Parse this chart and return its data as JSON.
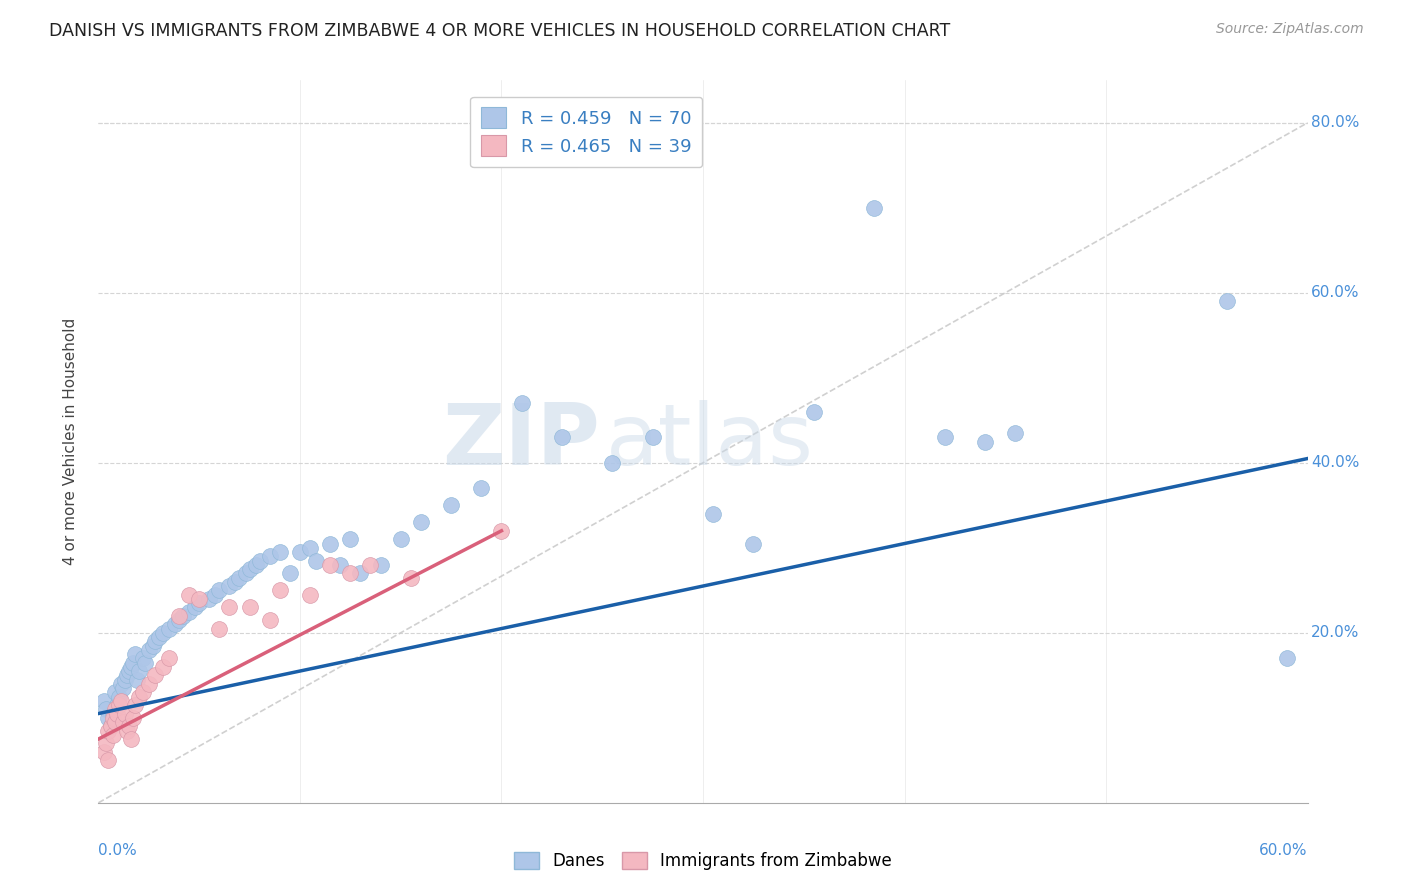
{
  "title": "DANISH VS IMMIGRANTS FROM ZIMBABWE 4 OR MORE VEHICLES IN HOUSEHOLD CORRELATION CHART",
  "source": "Source: ZipAtlas.com",
  "ylabel": "4 or more Vehicles in Household",
  "x_min": 0.0,
  "x_max": 0.6,
  "y_min": 0.0,
  "y_max": 0.85,
  "legend_blue_r": "R = 0.459",
  "legend_blue_n": "N = 70",
  "legend_pink_r": "R = 0.465",
  "legend_pink_n": "N = 39",
  "blue_color": "#aec6e8",
  "pink_color": "#f4b8c1",
  "blue_line_color": "#1a5fa8",
  "pink_line_color": "#d9607a",
  "diag_color": "#c8c8c8",
  "watermark_zip": "ZIP",
  "watermark_atlas": "atlas",
  "blue_line_x0": 0.0,
  "blue_line_y0": 0.105,
  "blue_line_x1": 0.6,
  "blue_line_y1": 0.405,
  "pink_line_x0": 0.0,
  "pink_line_y0": 0.075,
  "pink_line_x1": 0.2,
  "pink_line_y1": 0.32,
  "blue_points_x": [
    0.003,
    0.004,
    0.005,
    0.006,
    0.007,
    0.008,
    0.009,
    0.01,
    0.011,
    0.012,
    0.013,
    0.014,
    0.015,
    0.016,
    0.017,
    0.018,
    0.019,
    0.02,
    0.022,
    0.023,
    0.025,
    0.027,
    0.028,
    0.03,
    0.032,
    0.035,
    0.038,
    0.04,
    0.042,
    0.045,
    0.048,
    0.05,
    0.055,
    0.058,
    0.06,
    0.065,
    0.068,
    0.07,
    0.073,
    0.075,
    0.078,
    0.08,
    0.085,
    0.09,
    0.095,
    0.1,
    0.105,
    0.108,
    0.115,
    0.12,
    0.125,
    0.13,
    0.14,
    0.15,
    0.16,
    0.175,
    0.19,
    0.21,
    0.23,
    0.255,
    0.275,
    0.305,
    0.325,
    0.355,
    0.385,
    0.42,
    0.44,
    0.455,
    0.56,
    0.59
  ],
  "blue_points_y": [
    0.12,
    0.11,
    0.1,
    0.09,
    0.105,
    0.13,
    0.115,
    0.125,
    0.14,
    0.135,
    0.145,
    0.15,
    0.155,
    0.16,
    0.165,
    0.175,
    0.145,
    0.155,
    0.17,
    0.165,
    0.18,
    0.185,
    0.19,
    0.195,
    0.2,
    0.205,
    0.21,
    0.215,
    0.22,
    0.225,
    0.23,
    0.235,
    0.24,
    0.245,
    0.25,
    0.255,
    0.26,
    0.265,
    0.27,
    0.275,
    0.28,
    0.285,
    0.29,
    0.295,
    0.27,
    0.295,
    0.3,
    0.285,
    0.305,
    0.28,
    0.31,
    0.27,
    0.28,
    0.31,
    0.33,
    0.35,
    0.37,
    0.47,
    0.43,
    0.4,
    0.43,
    0.34,
    0.305,
    0.46,
    0.7,
    0.43,
    0.425,
    0.435,
    0.59,
    0.17
  ],
  "pink_points_x": [
    0.003,
    0.004,
    0.005,
    0.005,
    0.006,
    0.007,
    0.007,
    0.008,
    0.008,
    0.009,
    0.01,
    0.011,
    0.012,
    0.013,
    0.014,
    0.015,
    0.016,
    0.017,
    0.018,
    0.02,
    0.022,
    0.025,
    0.028,
    0.032,
    0.035,
    0.04,
    0.045,
    0.05,
    0.06,
    0.065,
    0.075,
    0.085,
    0.09,
    0.105,
    0.115,
    0.125,
    0.135,
    0.155,
    0.2
  ],
  "pink_points_y": [
    0.06,
    0.07,
    0.05,
    0.085,
    0.09,
    0.1,
    0.08,
    0.095,
    0.11,
    0.105,
    0.115,
    0.12,
    0.095,
    0.105,
    0.085,
    0.09,
    0.075,
    0.1,
    0.115,
    0.125,
    0.13,
    0.14,
    0.15,
    0.16,
    0.17,
    0.22,
    0.245,
    0.24,
    0.205,
    0.23,
    0.23,
    0.215,
    0.25,
    0.245,
    0.28,
    0.27,
    0.28,
    0.265,
    0.32
  ]
}
